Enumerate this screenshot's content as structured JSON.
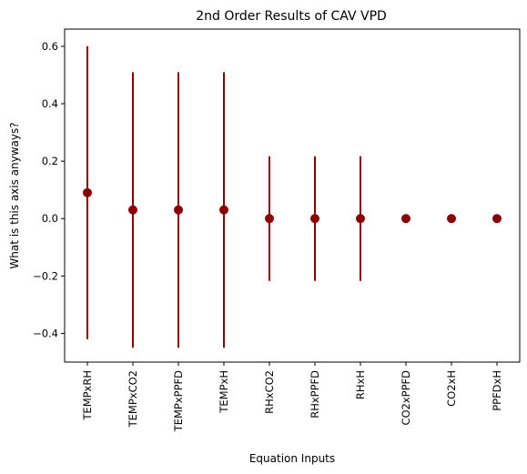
{
  "chart_data": {
    "type": "scatter",
    "title": "2nd Order Results of CAV VPD",
    "xlabel": "Equation Inputs",
    "ylabel": "What is this axis anyways?",
    "categories": [
      "TEMPxRH",
      "TEMPxCO2",
      "TEMPxPPFD",
      "TEMPxH",
      "RHxCO2",
      "RHxPPFD",
      "RHxH",
      "CO2xPPFD",
      "CO2xH",
      "PPFDxH"
    ],
    "values": [
      0.09,
      0.03,
      0.03,
      0.03,
      0.0,
      0.0,
      0.0,
      0.0,
      0.0,
      0.0
    ],
    "error": [
      0.51,
      0.48,
      0.48,
      0.48,
      0.217,
      0.217,
      0.217,
      0.0,
      0.0,
      0.0
    ],
    "ylim": [
      -0.5,
      0.66
    ],
    "yticks": [
      -0.4,
      -0.2,
      0.0,
      0.2,
      0.4,
      0.6
    ],
    "ytick_labels": [
      "−0.4",
      "−0.2",
      "0.0",
      "0.2",
      "0.4",
      "0.6"
    ],
    "grid": false,
    "color": "#8b0000"
  }
}
